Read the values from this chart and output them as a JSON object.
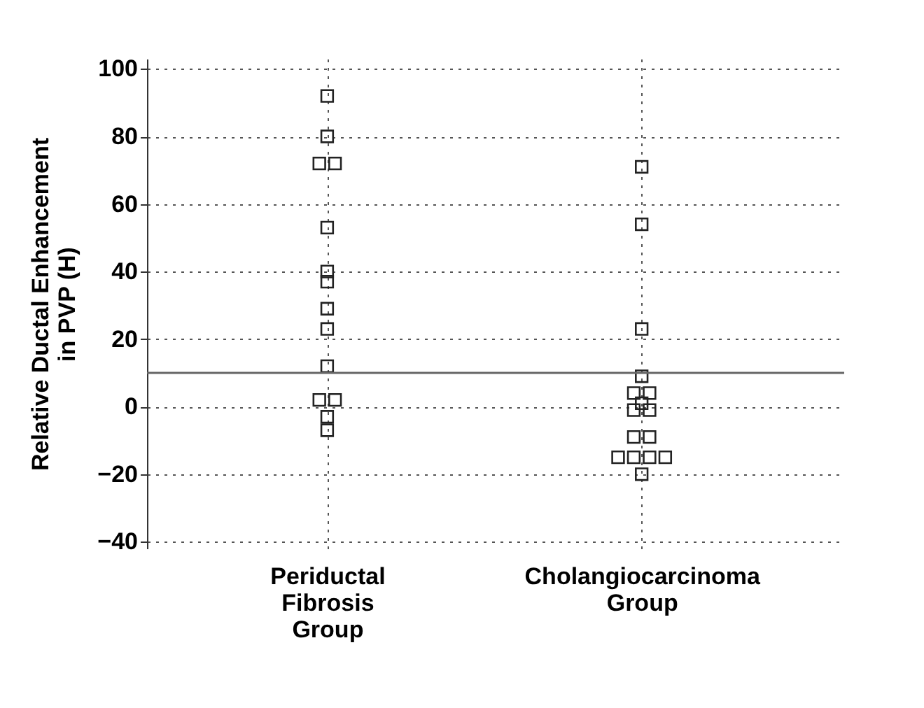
{
  "chart_data": {
    "type": "scatter",
    "ylabel": "Relative Ductal Enhancement in PVP (H)",
    "categories": [
      "Periductal Fibrosis Group",
      "Cholangiocarcinoma Group"
    ],
    "series": [
      {
        "color": "#222222",
        "x": [
          "Periductal Fibrosis Group",
          "Periductal Fibrosis Group",
          "Periductal Fibrosis Group",
          "Periductal Fibrosis Group",
          "Periductal Fibrosis Group",
          "Periductal Fibrosis Group",
          "Periductal Fibrosis Group",
          "Periductal Fibrosis Group",
          "Periductal Fibrosis Group",
          "Periductal Fibrosis Group",
          "Periductal Fibrosis Group",
          "Periductal Fibrosis Group",
          "Periductal Fibrosis Group",
          "Periductal Fibrosis Group"
        ],
        "values": [
          92,
          80,
          72,
          72,
          53,
          40,
          37,
          29,
          23,
          12,
          2,
          2,
          -3,
          -7
        ]
      },
      {
        "color": "#222222",
        "x": [
          "Cholangiocarcinoma Group",
          "Cholangiocarcinoma Group",
          "Cholangiocarcinoma Group",
          "Cholangiocarcinoma Group",
          "Cholangiocarcinoma Group",
          "Cholangiocarcinoma Group",
          "Cholangiocarcinoma Group",
          "Cholangiocarcinoma Group",
          "Cholangiocarcinoma Group",
          "Cholangiocarcinoma Group",
          "Cholangiocarcinoma Group",
          "Cholangiocarcinoma Group",
          "Cholangiocarcinoma Group",
          "Cholangiocarcinoma Group",
          "Cholangiocarcinoma Group",
          "Cholangiocarcinoma Group"
        ],
        "values": [
          71,
          54,
          23,
          9,
          4,
          4,
          1,
          -1,
          -1,
          -9,
          -9,
          -15,
          -15,
          -15,
          -15,
          -20
        ]
      }
    ],
    "ylim": [
      -42,
      103
    ],
    "yticks": [
      -40,
      -20,
      0,
      20,
      40,
      60,
      80,
      100
    ],
    "ref_lines": [
      {
        "axis": "y",
        "value": 10,
        "color": "#666666",
        "line_style": "solid"
      }
    ],
    "grid": true,
    "marker": "square",
    "legend": false
  }
}
